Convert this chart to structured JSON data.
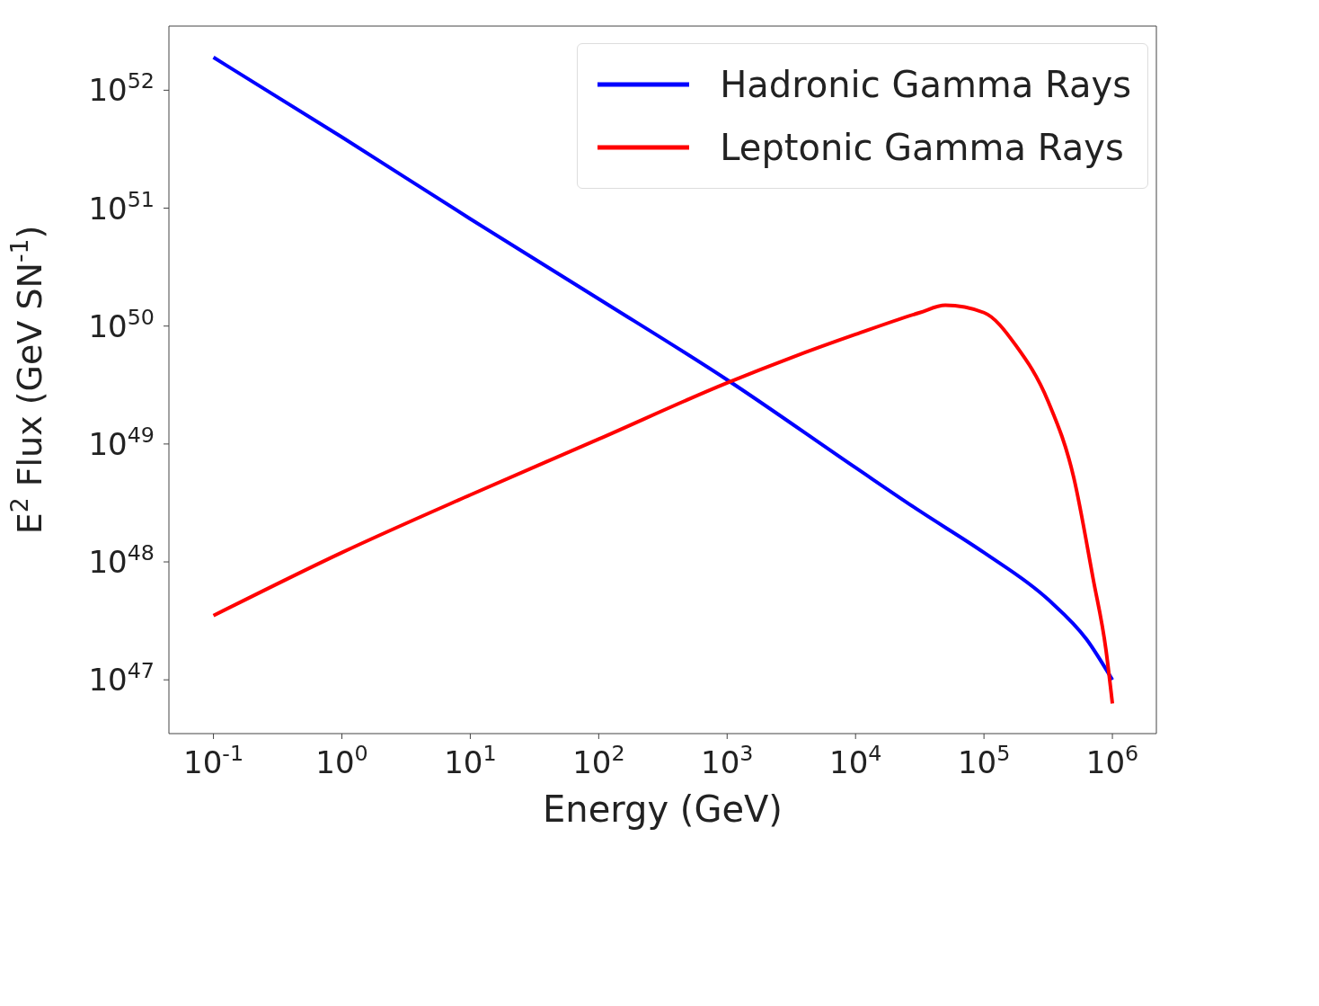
{
  "chart_data": {
    "type": "line",
    "xlabel": "Energy (GeV)",
    "ylabel": "E$^{2}$ Flux (GeV SN$^{-1}$)",
    "log": "xy",
    "legend": "top right",
    "marker": "none",
    "line_style": "solid",
    "xlim": [
      0.045,
      2200000
    ],
    "ylim": [
      3.5e+46,
      3.5e+52
    ],
    "xticks": [
      {
        "value": 0.1,
        "label": "10$^{-1}$"
      },
      {
        "value": 1,
        "label": "10$^{0}$"
      },
      {
        "value": 10,
        "label": "10$^{1}$"
      },
      {
        "value": 100,
        "label": "10$^{2}$"
      },
      {
        "value": 1000,
        "label": "10$^{3}$"
      },
      {
        "value": 10000,
        "label": "10$^{4}$"
      },
      {
        "value": 100000,
        "label": "10$^{5}$"
      },
      {
        "value": 1000000,
        "label": "10$^{6}$"
      }
    ],
    "yticks": [
      {
        "value": 1e+47,
        "label": "10$^{47}$"
      },
      {
        "value": 1e+48,
        "label": "10$^{48}$"
      },
      {
        "value": 1e+49,
        "label": "10$^{49}$"
      },
      {
        "value": 1e+50,
        "label": "10$^{50}$"
      },
      {
        "value": 1e+51,
        "label": "10$^{51}$"
      },
      {
        "value": 1e+52,
        "label": "10$^{52}$"
      }
    ],
    "series": [
      {
        "name": "Hadronic Gamma Rays",
        "color": "#0000ff",
        "x": [
          0.1,
          1,
          10,
          100,
          1000,
          10000,
          31600,
          100000,
          316000,
          630000,
          1000000
        ],
        "values": [
          1.9e+52,
          4e+51,
          8.1e+50,
          1.7e+50,
          3.5e+49,
          6.3e+48,
          2.7e+48,
          1.2e+48,
          4.8e+47,
          2.2e+47,
          1e+47
        ]
      },
      {
        "name": "Leptonic Gamma Rays",
        "color": "#ff0000",
        "x": [
          0.1,
          1,
          10,
          100,
          1000,
          3160,
          10000,
          31600,
          50000,
          100000,
          178000,
          316000,
          500000,
          708000,
          891000,
          1000000
        ],
        "values": [
          3.5e+47,
          1.2e+48,
          3.7e+48,
          1.1e+49,
          3.3e+49,
          5.4e+49,
          8.5e+49,
          1.3e+50,
          1.5e+50,
          1.3e+50,
          6.8e+49,
          2.3e+49,
          5.2e+48,
          7.2e+47,
          1.8e+47,
          6.3e+46
        ]
      }
    ]
  }
}
